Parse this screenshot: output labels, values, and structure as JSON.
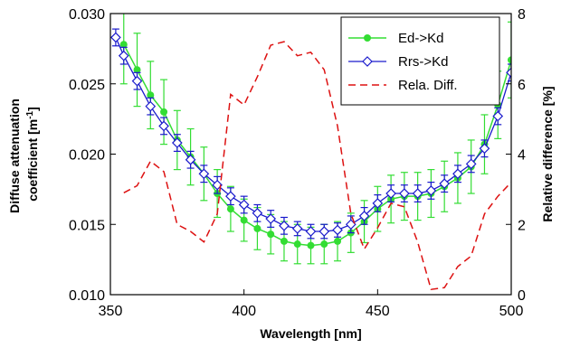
{
  "chart_data": {
    "type": "line",
    "x_label": "Wavelength [nm]",
    "y_label_left_line1": "Diffuse attenuation",
    "y_label_left_line2_prefix": "coefficient [m",
    "y_label_left_sup": "-1",
    "y_label_left_line2_suffix": "]",
    "y_label_right": "Relative difference [%]",
    "xlim": [
      350,
      500
    ],
    "ylim_left": [
      0.01,
      0.03
    ],
    "ylim_right": [
      0,
      8
    ],
    "x_ticks": [
      "350",
      "400",
      "450",
      "500"
    ],
    "y_left_ticks": [
      "0.010",
      "0.015",
      "0.020",
      "0.025",
      "0.030"
    ],
    "y_right_ticks": [
      "0",
      "2",
      "4",
      "6",
      "8"
    ],
    "legend_position": "top-right",
    "grid": false,
    "colors": {
      "ed": "#33dd33",
      "rrs": "#1a1acc",
      "diff": "#dd1111"
    },
    "series": [
      {
        "name": "Ed->Kd",
        "axis": "left",
        "marker": "filled-circle",
        "x": [
          355,
          360,
          365,
          370,
          375,
          380,
          385,
          390,
          395,
          400,
          405,
          410,
          415,
          420,
          425,
          430,
          435,
          440,
          445,
          450,
          455,
          460,
          465,
          470,
          475,
          480,
          485,
          490,
          495,
          500
        ],
        "y": [
          0.0278,
          0.026,
          0.0242,
          0.023,
          0.021,
          0.0198,
          0.0186,
          0.0172,
          0.0161,
          0.0153,
          0.0147,
          0.0143,
          0.0138,
          0.0136,
          0.0135,
          0.0136,
          0.0138,
          0.0144,
          0.0152,
          0.0161,
          0.0168,
          0.017,
          0.017,
          0.0172,
          0.0177,
          0.0183,
          0.0191,
          0.0207,
          0.0235,
          0.0267
        ],
        "err": [
          0.0028,
          0.0026,
          0.0024,
          0.0023,
          0.0021,
          0.002,
          0.0019,
          0.0017,
          0.0016,
          0.0015,
          0.0015,
          0.0014,
          0.0014,
          0.0014,
          0.0013,
          0.0014,
          0.0014,
          0.0014,
          0.0015,
          0.0016,
          0.0017,
          0.0017,
          0.0017,
          0.0017,
          0.0018,
          0.0018,
          0.0019,
          0.0021,
          0.0024,
          0.0027
        ]
      },
      {
        "name": "Rrs->Kd",
        "axis": "left",
        "marker": "open-diamond",
        "x": [
          352,
          355,
          360,
          365,
          370,
          375,
          380,
          385,
          390,
          395,
          400,
          405,
          410,
          415,
          420,
          425,
          430,
          435,
          440,
          445,
          450,
          455,
          460,
          465,
          470,
          475,
          480,
          485,
          490,
          495,
          500
        ],
        "y": [
          0.0283,
          0.027,
          0.0252,
          0.0234,
          0.022,
          0.0208,
          0.0196,
          0.0186,
          0.0178,
          0.017,
          0.0164,
          0.0158,
          0.0154,
          0.0149,
          0.0147,
          0.0145,
          0.0145,
          0.0146,
          0.015,
          0.0156,
          0.0165,
          0.0172,
          0.0172,
          0.0172,
          0.0174,
          0.0179,
          0.0186,
          0.0193,
          0.0204,
          0.0227,
          0.0258
        ],
        "err": [
          0.0006,
          0.0006,
          0.0006,
          0.0006,
          0.0006,
          0.0006,
          0.0006,
          0.0006,
          0.0006,
          0.0006,
          0.0006,
          0.0006,
          0.0006,
          0.0006,
          0.0005,
          0.0005,
          0.0005,
          0.0005,
          0.0006,
          0.0006,
          0.0006,
          0.0006,
          0.0006,
          0.0006,
          0.0006,
          0.0006,
          0.0006,
          0.0006,
          0.0006,
          0.0006,
          0.0006
        ]
      },
      {
        "name": "Rela. Diff.",
        "axis": "right",
        "style": "dashed",
        "x": [
          355,
          360,
          365,
          370,
          375,
          380,
          385,
          390,
          395,
          400,
          405,
          410,
          415,
          420,
          425,
          430,
          435,
          440,
          445,
          450,
          455,
          460,
          465,
          470,
          475,
          480,
          485,
          490,
          495,
          500
        ],
        "y": [
          2.9,
          3.1,
          3.8,
          3.5,
          2.0,
          1.8,
          1.5,
          2.3,
          5.7,
          5.4,
          6.2,
          7.1,
          7.2,
          6.8,
          6.9,
          6.4,
          4.8,
          2.3,
          1.3,
          1.9,
          2.6,
          2.5,
          1.5,
          0.15,
          0.2,
          0.8,
          1.1,
          2.3,
          2.8,
          3.2
        ]
      }
    ]
  }
}
